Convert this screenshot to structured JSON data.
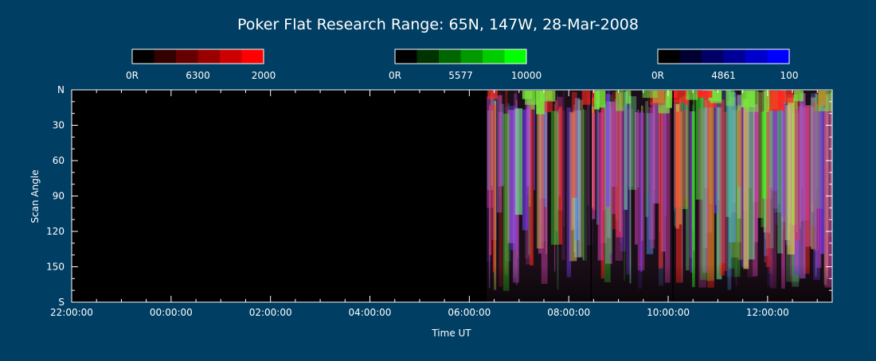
{
  "chart_data": {
    "type": "heatmap",
    "title": "Poker Flat Research Range: 65N, 147W, 28-Mar-2008",
    "xlabel": "Time UT",
    "ylabel": "Scan Angle",
    "x_tick_labels": [
      "22:00:00",
      "00:00:00",
      "02:00:00",
      "04:00:00",
      "06:00:00",
      "08:00:00",
      "10:00:00",
      "12:00:00"
    ],
    "x_ticks_hours": [
      22,
      24,
      26,
      28,
      30,
      32,
      34,
      36
    ],
    "xlim_hours": [
      22,
      37.3
    ],
    "data_start_hours": 30.35,
    "y_tick_labels": [
      "N",
      "30",
      "60",
      "90",
      "120",
      "150",
      "S"
    ],
    "y_ticks": [
      0,
      30,
      60,
      90,
      120,
      150,
      180
    ],
    "ylim": [
      0,
      180
    ],
    "colorbars": [
      {
        "name": "6300",
        "min_label": "0R",
        "mid_label": "6300",
        "max_label": "2000",
        "colors": [
          "#000000",
          "#330000",
          "#660000",
          "#990000",
          "#cc0000",
          "#ff0000"
        ]
      },
      {
        "name": "5577",
        "min_label": "0R",
        "mid_label": "5577",
        "max_label": "10000",
        "colors": [
          "#000000",
          "#003300",
          "#006600",
          "#009900",
          "#00cc00",
          "#00ff00"
        ]
      },
      {
        "name": "4861",
        "min_label": "0R",
        "mid_label": "4861",
        "max_label": "100",
        "colors": [
          "#000000",
          "#000033",
          "#000066",
          "#000099",
          "#0000cc",
          "#0000ff"
        ]
      }
    ]
  }
}
